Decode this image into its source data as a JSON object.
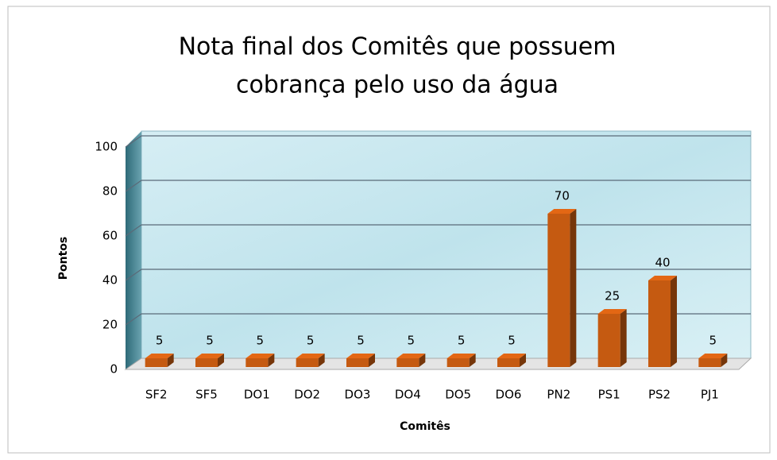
{
  "chart_data": {
    "type": "bar3d",
    "title": [
      "Nota final dos Comitês que possuem",
      "cobrança pelo uso da água"
    ],
    "x_label": "Comitês",
    "y_label": "Pontos",
    "categories": [
      "SF2",
      "SF5",
      "DO1",
      "DO2",
      "DO3",
      "DO4",
      "DO5",
      "DO6",
      "PN2",
      "PS1",
      "PS2",
      "PJ1"
    ],
    "values": [
      5,
      5,
      5,
      5,
      5,
      5,
      5,
      5,
      70,
      25,
      40,
      5
    ],
    "color": "#c55a11",
    "ylim": [
      0,
      100
    ],
    "yticks": [
      0,
      20,
      40,
      60,
      80,
      100
    ],
    "grid": true
  }
}
